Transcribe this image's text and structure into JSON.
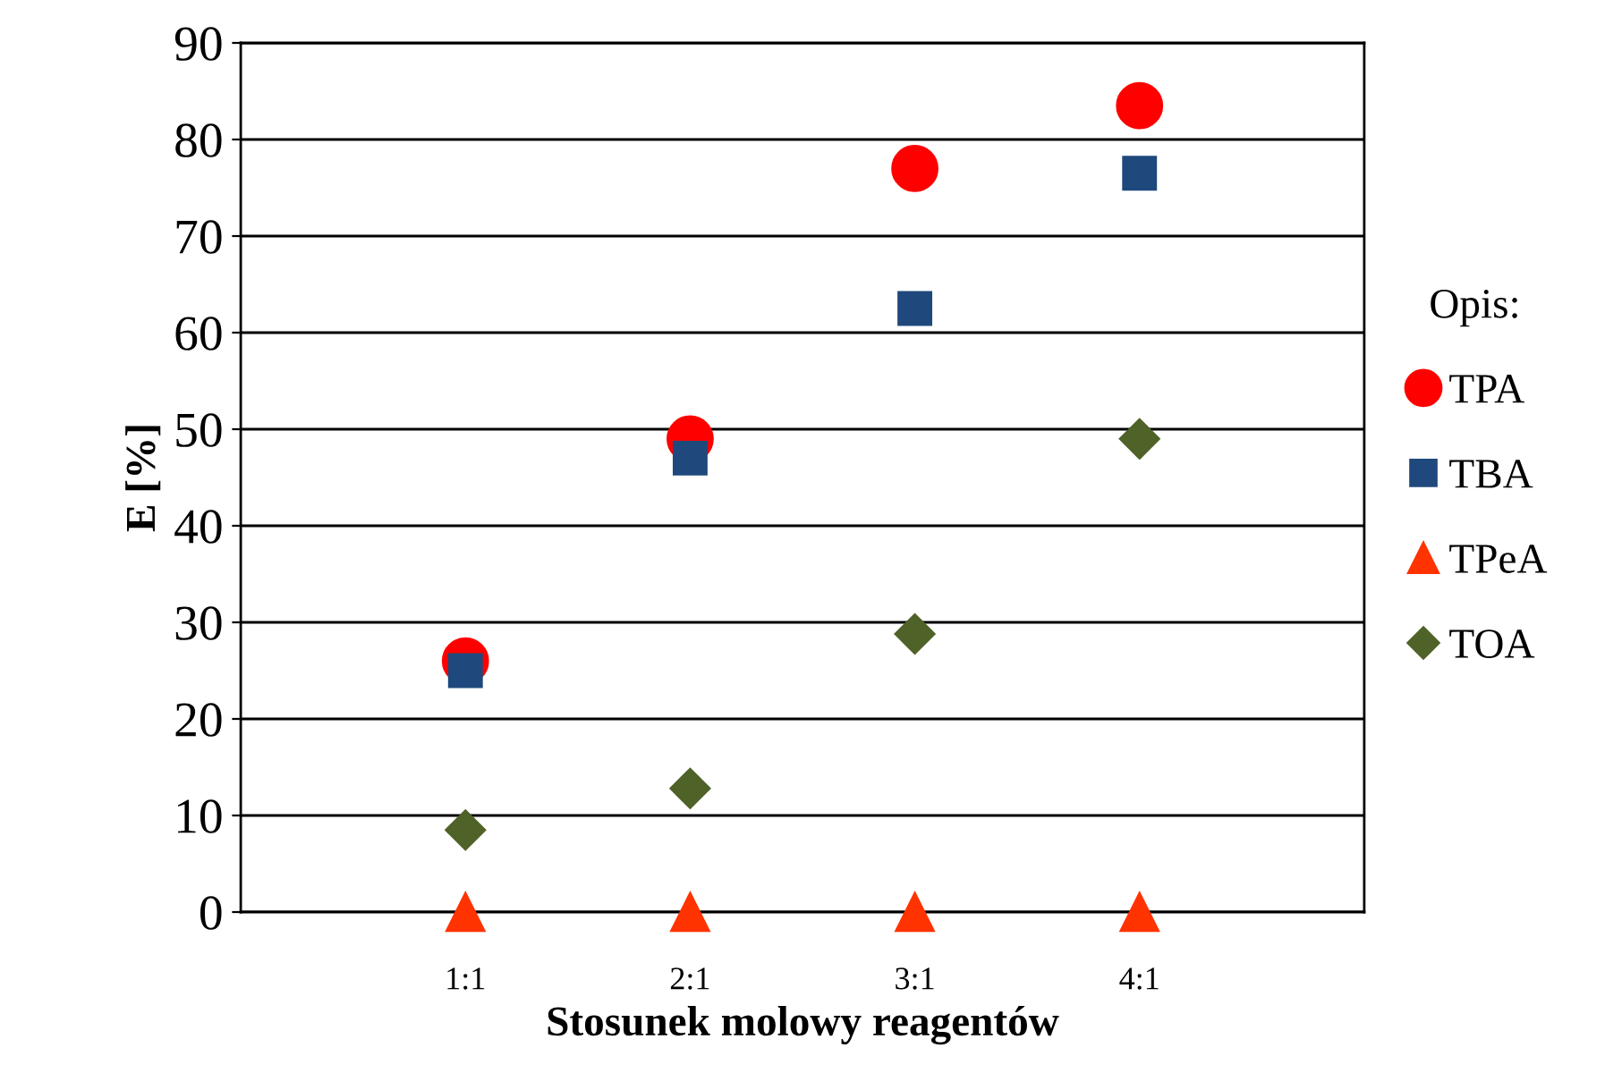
{
  "chart_data": {
    "type": "scatter",
    "xlabel": "Stosunek molowy reagentów",
    "ylabel": "E [%]",
    "legend_title": "Opis:",
    "categories": [
      "1:1",
      "2:1",
      "3:1",
      "4:1"
    ],
    "series": [
      {
        "name": "TPA",
        "color": "#ff0000",
        "marker": "circle",
        "values": [
          26,
          49,
          77,
          83.5
        ]
      },
      {
        "name": "TBA",
        "color": "#1f497d",
        "marker": "square",
        "values": [
          25,
          47,
          62.5,
          76.5
        ]
      },
      {
        "name": "TPeA",
        "color": "#ff3300",
        "marker": "triangle",
        "values": [
          0,
          0,
          0,
          0
        ]
      },
      {
        "name": "TOA",
        "color": "#4f6228",
        "marker": "diamond",
        "values": [
          8.5,
          12.8,
          28.8,
          49
        ]
      }
    ],
    "ylim": [
      0,
      90
    ],
    "yticks": [
      0,
      10,
      20,
      30,
      40,
      50,
      60,
      70,
      80,
      90
    ],
    "grid": "y",
    "legend": "right"
  }
}
